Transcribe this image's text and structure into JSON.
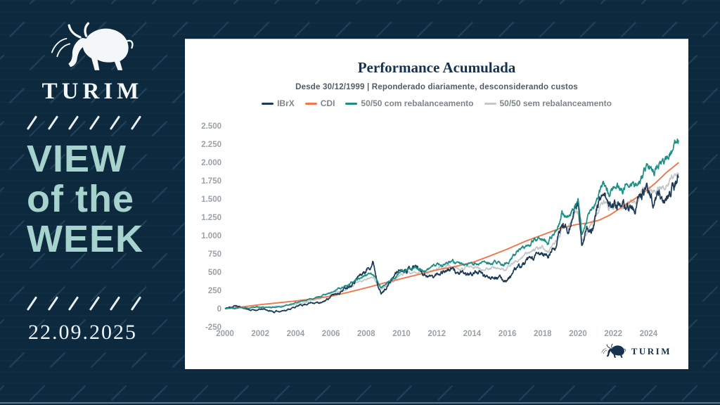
{
  "page": {
    "background_color": "#0d2a3e",
    "accent_teal": "#a6d3cd"
  },
  "sidebar": {
    "brand": "TURIM",
    "title_line1": "VIEW",
    "title_line2": "of the",
    "title_line3": "WEEK",
    "date": "22.09.2025"
  },
  "card": {
    "footer_brand": "TURIM"
  },
  "chart_data": {
    "type": "line",
    "title": "Performance Acumulada",
    "subtitle": "Desde 30/12/1999 | Reponderado diariamente, desconsiderando custos",
    "xlabel": "",
    "ylabel": "",
    "x_range": [
      2000,
      2025.75
    ],
    "y_range": [
      -250,
      2500
    ],
    "grid": false,
    "legend_position": "top",
    "axis_label_color": "#9aa1a8",
    "x_ticks": [
      2000,
      2002,
      2004,
      2006,
      2008,
      2010,
      2012,
      2014,
      2016,
      2018,
      2020,
      2022,
      2024
    ],
    "y_ticks": [
      {
        "value": 2500,
        "label": "2.500"
      },
      {
        "value": 2250,
        "label": "2.250"
      },
      {
        "value": 2000,
        "label": "2.000"
      },
      {
        "value": 1750,
        "label": "1.750"
      },
      {
        "value": 1500,
        "label": "1.500"
      },
      {
        "value": 1250,
        "label": "1.250"
      },
      {
        "value": 1000,
        "label": "1.000"
      },
      {
        "value": 750,
        "label": "750"
      },
      {
        "value": 500,
        "label": "500"
      },
      {
        "value": 250,
        "label": "250"
      },
      {
        "value": 0,
        "label": "0"
      },
      {
        "value": -250,
        "label": "-250"
      }
    ],
    "series": [
      {
        "name": "IBrX",
        "color": "#1c3a55",
        "volatility": 0.6,
        "keypoints": [
          [
            2000,
            0
          ],
          [
            2000.6,
            40
          ],
          [
            2001.5,
            -20
          ],
          [
            2002.2,
            -10
          ],
          [
            2002.8,
            -45
          ],
          [
            2003.5,
            -15
          ],
          [
            2004,
            25
          ],
          [
            2004.5,
            60
          ],
          [
            2005,
            90
          ],
          [
            2005.5,
            75
          ],
          [
            2006,
            170
          ],
          [
            2006.5,
            230
          ],
          [
            2007,
            320
          ],
          [
            2007.5,
            430
          ],
          [
            2008.0,
            520
          ],
          [
            2008.4,
            650
          ],
          [
            2008.6,
            420
          ],
          [
            2008.85,
            200
          ],
          [
            2009.2,
            310
          ],
          [
            2009.8,
            520
          ],
          [
            2010.3,
            560
          ],
          [
            2010.8,
            590
          ],
          [
            2011.3,
            480
          ],
          [
            2011.8,
            430
          ],
          [
            2012.3,
            520
          ],
          [
            2012.8,
            540
          ],
          [
            2013.3,
            480
          ],
          [
            2013.8,
            460
          ],
          [
            2014.3,
            510
          ],
          [
            2014.8,
            430
          ],
          [
            2015.3,
            460
          ],
          [
            2015.8,
            390
          ],
          [
            2016.05,
            410
          ],
          [
            2016.5,
            540
          ],
          [
            2017,
            620
          ],
          [
            2017.5,
            690
          ],
          [
            2018.0,
            750
          ],
          [
            2018.3,
            700
          ],
          [
            2018.8,
            900
          ],
          [
            2019.1,
            1150
          ],
          [
            2019.4,
            1100
          ],
          [
            2019.75,
            1300
          ],
          [
            2020.0,
            1470
          ],
          [
            2020.22,
            810
          ],
          [
            2020.5,
            1050
          ],
          [
            2020.75,
            1100
          ],
          [
            2021.0,
            1300
          ],
          [
            2021.45,
            1650
          ],
          [
            2021.75,
            1380
          ],
          [
            2022.2,
            1480
          ],
          [
            2022.5,
            1310
          ],
          [
            2022.8,
            1420
          ],
          [
            2023.2,
            1350
          ],
          [
            2023.6,
            1550
          ],
          [
            2023.95,
            1620
          ],
          [
            2024.3,
            1480
          ],
          [
            2024.6,
            1580
          ],
          [
            2024.9,
            1450
          ],
          [
            2025.2,
            1600
          ],
          [
            2025.45,
            1700
          ],
          [
            2025.72,
            1820
          ]
        ]
      },
      {
        "name": "CDI",
        "color": "#f0774b",
        "volatility": 0,
        "keypoints": [
          [
            2000,
            0
          ],
          [
            2001,
            25
          ],
          [
            2002,
            55
          ],
          [
            2003,
            80
          ],
          [
            2004,
            105
          ],
          [
            2005,
            135
          ],
          [
            2006,
            170
          ],
          [
            2007,
            225
          ],
          [
            2008,
            285
          ],
          [
            2009,
            350
          ],
          [
            2010,
            410
          ],
          [
            2011,
            470
          ],
          [
            2012,
            530
          ],
          [
            2013,
            575
          ],
          [
            2014,
            630
          ],
          [
            2015,
            720
          ],
          [
            2016,
            815
          ],
          [
            2017,
            920
          ],
          [
            2018,
            1010
          ],
          [
            2019,
            1100
          ],
          [
            2019.9,
            1150
          ],
          [
            2020.5,
            1170
          ],
          [
            2021.2,
            1210
          ],
          [
            2021.8,
            1280
          ],
          [
            2022.5,
            1390
          ],
          [
            2023.2,
            1500
          ],
          [
            2023.8,
            1600
          ],
          [
            2024.4,
            1720
          ],
          [
            2025.0,
            1860
          ],
          [
            2025.72,
            2000
          ]
        ]
      },
      {
        "name": "50/50 com rebalanceamento",
        "color": "#1d8f85",
        "volatility": 0.38,
        "keypoints": [
          [
            2000,
            0
          ],
          [
            2001,
            10
          ],
          [
            2002,
            25
          ],
          [
            2002.8,
            15
          ],
          [
            2003.5,
            40
          ],
          [
            2004,
            80
          ],
          [
            2005,
            130
          ],
          [
            2006,
            220
          ],
          [
            2007,
            330
          ],
          [
            2007.5,
            420
          ],
          [
            2008.0,
            450
          ],
          [
            2008.4,
            480
          ],
          [
            2008.85,
            280
          ],
          [
            2009.5,
            420
          ],
          [
            2010,
            510
          ],
          [
            2010.8,
            560
          ],
          [
            2011.5,
            520
          ],
          [
            2012,
            600
          ],
          [
            2012.7,
            650
          ],
          [
            2013.3,
            600
          ],
          [
            2014,
            640
          ],
          [
            2014.7,
            600
          ],
          [
            2015.3,
            640
          ],
          [
            2015.8,
            600
          ],
          [
            2016.1,
            660
          ],
          [
            2016.5,
            760
          ],
          [
            2017,
            850
          ],
          [
            2017.5,
            920
          ],
          [
            2018,
            960
          ],
          [
            2018.3,
            920
          ],
          [
            2018.8,
            1080
          ],
          [
            2019.1,
            1300
          ],
          [
            2019.4,
            1280
          ],
          [
            2019.75,
            1400
          ],
          [
            2020.0,
            1520
          ],
          [
            2020.22,
            1010
          ],
          [
            2020.5,
            1250
          ],
          [
            2021.0,
            1480
          ],
          [
            2021.45,
            1700
          ],
          [
            2021.75,
            1560
          ],
          [
            2022.2,
            1680
          ],
          [
            2022.5,
            1600
          ],
          [
            2022.8,
            1700
          ],
          [
            2023.2,
            1680
          ],
          [
            2023.6,
            1800
          ],
          [
            2023.95,
            1900
          ],
          [
            2024.3,
            1850
          ],
          [
            2024.6,
            1980
          ],
          [
            2024.9,
            1950
          ],
          [
            2025.2,
            2080
          ],
          [
            2025.45,
            2180
          ],
          [
            2025.72,
            2330
          ]
        ]
      },
      {
        "name": "50/50 sem rebalanceamento",
        "color": "#c3c7ca",
        "volatility": 0.34,
        "keypoints": [
          [
            2000,
            0
          ],
          [
            2001,
            5
          ],
          [
            2002,
            15
          ],
          [
            2003,
            30
          ],
          [
            2004,
            60
          ],
          [
            2005,
            110
          ],
          [
            2006,
            190
          ],
          [
            2007,
            290
          ],
          [
            2007.5,
            370
          ],
          [
            2008.0,
            400
          ],
          [
            2008.4,
            430
          ],
          [
            2008.85,
            250
          ],
          [
            2009.5,
            380
          ],
          [
            2010,
            470
          ],
          [
            2010.8,
            510
          ],
          [
            2011.5,
            480
          ],
          [
            2012,
            540
          ],
          [
            2012.7,
            590
          ],
          [
            2013.3,
            550
          ],
          [
            2014,
            580
          ],
          [
            2014.7,
            540
          ],
          [
            2015.3,
            570
          ],
          [
            2015.8,
            530
          ],
          [
            2016.1,
            580
          ],
          [
            2016.5,
            660
          ],
          [
            2017,
            740
          ],
          [
            2017.5,
            800
          ],
          [
            2018,
            840
          ],
          [
            2018.3,
            800
          ],
          [
            2018.8,
            940
          ],
          [
            2019.1,
            1120
          ],
          [
            2019.4,
            1100
          ],
          [
            2019.75,
            1220
          ],
          [
            2020.0,
            1330
          ],
          [
            2020.22,
            900
          ],
          [
            2020.5,
            1100
          ],
          [
            2021.0,
            1300
          ],
          [
            2021.45,
            1480
          ],
          [
            2021.75,
            1350
          ],
          [
            2022.2,
            1450
          ],
          [
            2022.5,
            1380
          ],
          [
            2022.8,
            1470
          ],
          [
            2023.2,
            1440
          ],
          [
            2023.6,
            1560
          ],
          [
            2023.95,
            1640
          ],
          [
            2024.3,
            1580
          ],
          [
            2024.6,
            1690
          ],
          [
            2024.9,
            1640
          ],
          [
            2025.2,
            1750
          ],
          [
            2025.45,
            1820
          ],
          [
            2025.72,
            1890
          ]
        ]
      }
    ]
  }
}
